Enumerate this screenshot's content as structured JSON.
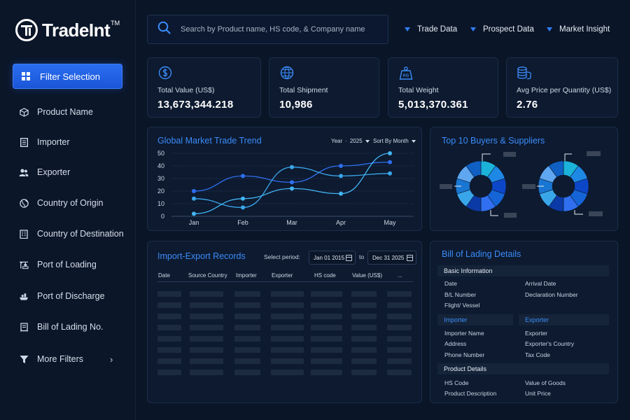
{
  "brand": {
    "name": "TradeInt",
    "tm": "TM"
  },
  "sidebar": {
    "filter_button": "Filter Selection",
    "items": [
      {
        "label": "Product Name",
        "icon": "cube-icon"
      },
      {
        "label": "Importer",
        "icon": "document-icon"
      },
      {
        "label": "Exporter",
        "icon": "users-icon"
      },
      {
        "label": "Country of Origin",
        "icon": "globe-icon"
      },
      {
        "label": "Country of Destination",
        "icon": "building-icon"
      },
      {
        "label": "Port of Loading",
        "icon": "crane-icon"
      },
      {
        "label": "Port of Discharge",
        "icon": "ship-icon"
      },
      {
        "label": "Bill of Lading No.",
        "icon": "receipt-icon"
      },
      {
        "label": "More Filters",
        "icon": "funnel-icon"
      }
    ]
  },
  "search": {
    "placeholder": "Search by Product name, HS code, & Company name"
  },
  "top_menu": [
    "Trade Data",
    "Prospect Data",
    "Market Insight"
  ],
  "kpis": [
    {
      "label": "Total Value (US$)",
      "value": "13,673,344.218",
      "icon": "dollar-icon"
    },
    {
      "label": "Total Shipment",
      "value": "10,986",
      "icon": "container-icon"
    },
    {
      "label": "Total Weight",
      "value": "5,013,370.361",
      "icon": "weight-icon"
    },
    {
      "label": "Avg Price per Quantity (US$)",
      "value": "2.76",
      "icon": "coins-icon"
    }
  ],
  "trend": {
    "title": "Global Market Trade Trend",
    "year_label": "Year",
    "year_value": "2025",
    "sort_label": "Sort By Month"
  },
  "chart_data": {
    "type": "line",
    "title": "Global Market Trade Trend",
    "categories": [
      "Jan",
      "Feb",
      "Mar",
      "Apr",
      "May"
    ],
    "ylim": [
      0,
      50
    ],
    "yticks": [
      0,
      10,
      20,
      30,
      40,
      50
    ],
    "grid": true,
    "series": [
      {
        "values": [
          20,
          32,
          27,
          40,
          43
        ],
        "color": "#2f6ff0"
      },
      {
        "values": [
          14,
          7,
          39,
          32,
          34
        ],
        "color": "#3aa6ea"
      },
      {
        "values": [
          2,
          14,
          22,
          18,
          50
        ],
        "color": "#43b6f5"
      }
    ]
  },
  "top10": {
    "title": "Top 10 Buyers & Suppliers"
  },
  "records": {
    "title": "Import-Export Records",
    "select_period_label": "Select period:",
    "from": "Jan 01 2015",
    "to_label": "to",
    "to": "Dec 31 2025",
    "columns": [
      "Date",
      "Source Country",
      "Importer",
      "Exporter",
      "HS code",
      "Value (US$)",
      "..."
    ],
    "placeholder_rows": 8
  },
  "bol": {
    "title": "Bill of Lading Details",
    "basic_info": "Basic Information",
    "basic_left": [
      "Date",
      "B/L Number",
      "Flight/ Vessel"
    ],
    "basic_right": [
      "Arrival Date",
      "Declaration Number"
    ],
    "importer_head": "Importer",
    "exporter_head": "Exporter",
    "importer_fields": [
      "Importer Name",
      "Address",
      "Phone Number"
    ],
    "exporter_fields": [
      "Exporter",
      "Exporter's Country",
      "Tax Code"
    ],
    "product_details": "Product Details",
    "product_left": [
      "HS Code",
      "Product Description"
    ],
    "product_right": [
      "Value of Goods",
      "Unit Price"
    ]
  }
}
